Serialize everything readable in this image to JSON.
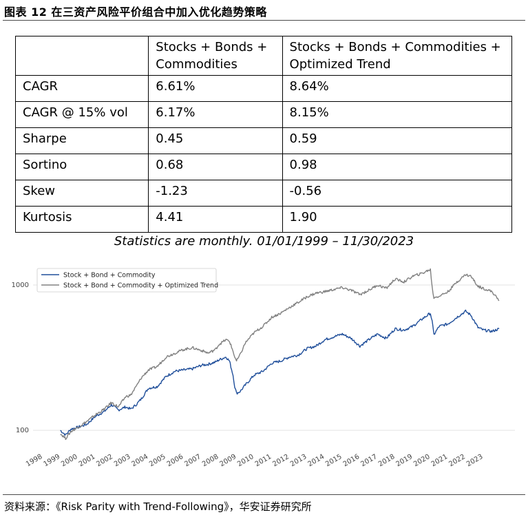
{
  "figure_title": "图表 12  在三资产风险平价组合中加入优化趋势策略",
  "table": {
    "header": [
      "",
      "Stocks + Bonds + Commodities",
      "Stocks + Bonds + Commodities + Optimized Trend"
    ],
    "header_lines": [
      [
        "",
        ""
      ],
      [
        "Stocks + Bonds +",
        "Commodities"
      ],
      [
        "Stocks + Bonds + Commodities +",
        "Optimized Trend"
      ]
    ],
    "rows": [
      [
        "CAGR",
        "6.61%",
        "8.64%"
      ],
      [
        "CAGR @ 15% vol",
        "6.17%",
        "8.15%"
      ],
      [
        "Sharpe",
        "0.45",
        "0.59"
      ],
      [
        "Sortino",
        "0.68",
        "0.98"
      ],
      [
        "Skew",
        "-1.23",
        "-0.56"
      ],
      [
        "Kurtosis",
        "4.41",
        "1.90"
      ]
    ]
  },
  "caption": "Statistics are monthly. 01/01/1999 – 11/30/2023",
  "chart_data": {
    "type": "line",
    "yscale": "log",
    "ylim": [
      85,
      1300
    ],
    "y_ticks": [
      100,
      1000
    ],
    "y_tick_labels": [
      "100",
      "1000"
    ],
    "x_ticks": [
      "1998",
      "1999",
      "2000",
      "2001",
      "2002",
      "2003",
      "2004",
      "2005",
      "2006",
      "2007",
      "2008",
      "2009",
      "2010",
      "2011",
      "2012",
      "2013",
      "2014",
      "2015",
      "2016",
      "2017",
      "2018",
      "2019",
      "2020",
      "2021",
      "2022",
      "2023"
    ],
    "x_range": [
      1998,
      2024
    ],
    "legend_position": "top-left",
    "grid": "horizontal",
    "colors": {
      "series_1": "#1f4e9a",
      "series_2": "#808080"
    },
    "series": [
      {
        "name": "Stock + Bond + Commodity",
        "x": [
          1999.0,
          1999.3,
          1999.6,
          2000.0,
          2000.5,
          2001.0,
          2001.5,
          2001.9,
          2002.3,
          2002.7,
          2003.0,
          2003.3,
          2003.6,
          2004.0,
          2004.5,
          2005.0,
          2005.5,
          2006.0,
          2006.5,
          2007.0,
          2007.4,
          2007.8,
          2008.0,
          2008.4,
          2008.6,
          2008.8,
          2008.9,
          2009.0,
          2009.2,
          2009.5,
          2010.0,
          2010.5,
          2011.0,
          2011.5,
          2012.0,
          2012.5,
          2013.0,
          2013.5,
          2014.0,
          2014.5,
          2015.0,
          2015.5,
          2016.0,
          2016.5,
          2017.0,
          2017.5,
          2018.0,
          2018.5,
          2019.0,
          2019.5,
          2020.0,
          2020.1,
          2020.2,
          2020.5,
          2021.0,
          2021.5,
          2022.0,
          2022.3,
          2022.7,
          2023.0,
          2023.5,
          2023.9
        ],
        "values": [
          100,
          93,
          102,
          105,
          110,
          125,
          135,
          150,
          138,
          145,
          140,
          150,
          165,
          195,
          200,
          235,
          255,
          260,
          265,
          280,
          285,
          295,
          305,
          320,
          300,
          240,
          200,
          180,
          185,
          205,
          240,
          255,
          290,
          300,
          320,
          330,
          365,
          380,
          420,
          440,
          460,
          430,
          380,
          420,
          460,
          430,
          500,
          490,
          520,
          580,
          640,
          560,
          455,
          520,
          540,
          600,
          660,
          620,
          510,
          490,
          480,
          500
        ]
      },
      {
        "name": "Stock + Bond + Commodity + Optimized Trend",
        "x": [
          1999.0,
          1999.3,
          1999.6,
          2000.0,
          2000.5,
          2001.0,
          2001.5,
          2001.9,
          2002.3,
          2002.7,
          2003.0,
          2003.3,
          2003.6,
          2004.0,
          2004.5,
          2005.0,
          2005.5,
          2006.0,
          2006.5,
          2007.0,
          2007.4,
          2007.8,
          2008.0,
          2008.4,
          2008.6,
          2008.8,
          2008.9,
          2009.0,
          2009.2,
          2009.5,
          2010.0,
          2010.5,
          2011.0,
          2011.5,
          2012.0,
          2012.5,
          2013.0,
          2013.5,
          2014.0,
          2014.5,
          2015.0,
          2015.5,
          2016.0,
          2016.5,
          2017.0,
          2017.5,
          2018.0,
          2018.5,
          2019.0,
          2019.5,
          2020.0,
          2020.1,
          2020.2,
          2020.5,
          2021.0,
          2021.5,
          2022.0,
          2022.3,
          2022.7,
          2023.0,
          2023.5,
          2023.9
        ],
        "values": [
          95,
          88,
          98,
          105,
          115,
          128,
          140,
          155,
          145,
          170,
          175,
          200,
          230,
          260,
          275,
          320,
          340,
          360,
          370,
          355,
          340,
          360,
          390,
          420,
          410,
          350,
          320,
          300,
          330,
          400,
          470,
          520,
          600,
          640,
          700,
          760,
          830,
          880,
          900,
          930,
          960,
          920,
          860,
          920,
          1000,
          950,
          1100,
          1050,
          1150,
          1200,
          1280,
          960,
          820,
          840,
          900,
          1050,
          1180,
          1150,
          980,
          950,
          900,
          780
        ]
      }
    ]
  },
  "source": {
    "prefix": "资料来源：",
    "text": "《Risk Parity with Trend-Following》，华安证券研究所"
  }
}
